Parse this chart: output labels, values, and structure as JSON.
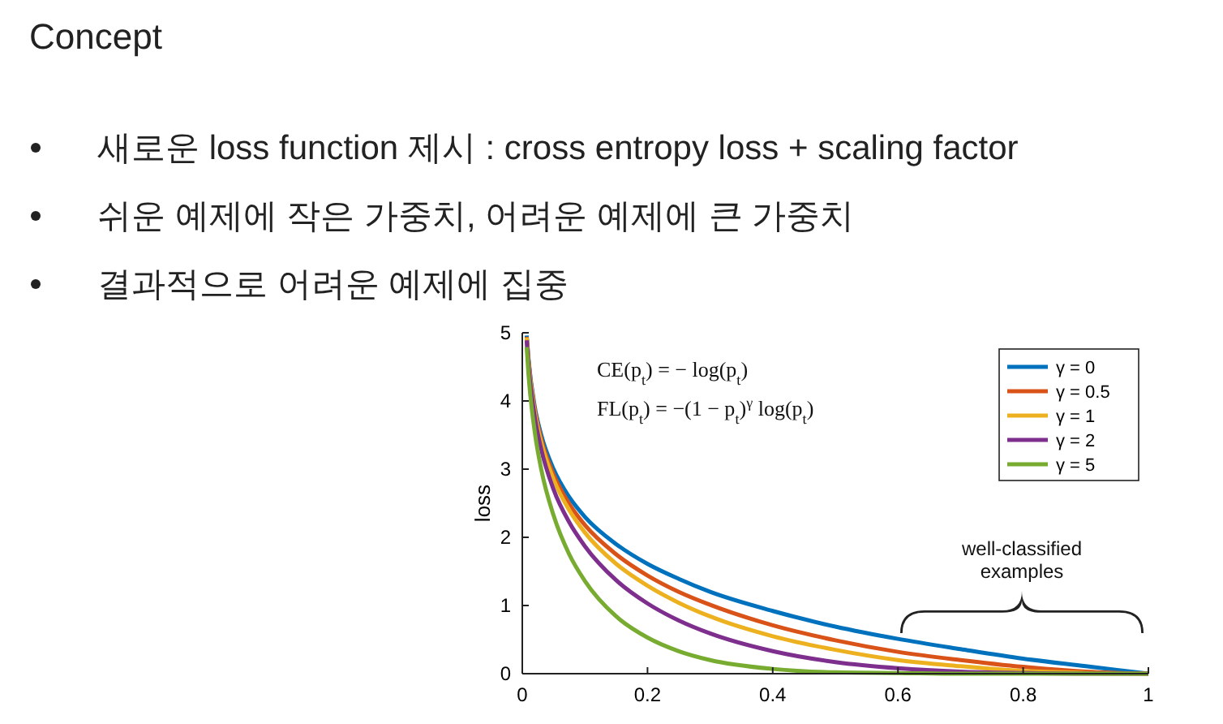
{
  "chart_data": {
    "type": "line",
    "title": "Concept",
    "ylabel": "loss",
    "annotations": [
      "새로운 loss function 제시 : cross entropy loss + scaling factor",
      "쉬운 예제에 작은 가중치, 어려운 예제에 큰 가중치",
      "결과적으로 어려운 예제에 집중",
      "CE(p$_{t}$) = − log(p$_{t}$)",
      "FL(p$_{t}$) = −(1 − p$_{t}$)$^{γ}$ log(p$_{t}$)",
      "well-classified examples"
    ],
    "x": [
      0.007,
      0.01,
      0.02,
      0.03,
      0.05,
      0.075,
      0.1,
      0.15,
      0.2,
      0.25,
      0.3,
      0.4,
      0.5,
      0.6,
      0.7,
      0.8,
      0.9,
      1.0
    ],
    "series": [
      {
        "name": "γ = 0",
        "color": "#0072bd",
        "values": [
          4.96,
          4.61,
          3.91,
          3.51,
          3.0,
          2.59,
          2.3,
          1.9,
          1.61,
          1.39,
          1.2,
          0.92,
          0.69,
          0.51,
          0.36,
          0.22,
          0.11,
          0
        ]
      },
      {
        "name": "γ = 0.5",
        "color": "#d95319",
        "values": [
          4.94,
          4.58,
          3.87,
          3.45,
          2.92,
          2.49,
          2.18,
          1.75,
          1.44,
          1.2,
          1.01,
          0.71,
          0.49,
          0.32,
          0.2,
          0.1,
          0.03,
          0
        ]
      },
      {
        "name": "γ = 1",
        "color": "#edb120",
        "values": [
          4.93,
          4.56,
          3.83,
          3.4,
          2.85,
          2.4,
          2.07,
          1.61,
          1.29,
          1.04,
          0.84,
          0.55,
          0.35,
          0.2,
          0.11,
          0.04,
          0.01,
          0
        ]
      },
      {
        "name": "γ = 2",
        "color": "#7e2f8e",
        "values": [
          4.89,
          4.51,
          3.76,
          3.3,
          2.7,
          2.22,
          1.87,
          1.37,
          1.03,
          0.78,
          0.59,
          0.33,
          0.17,
          0.08,
          0.03,
          0.01,
          0,
          0
        ]
      },
      {
        "name": "γ = 5",
        "color": "#77ac30",
        "values": [
          4.79,
          4.38,
          3.54,
          3.01,
          2.32,
          1.75,
          1.36,
          0.84,
          0.53,
          0.33,
          0.2,
          0.07,
          0.02,
          0.01,
          0,
          0,
          0,
          0
        ]
      }
    ],
    "xlim": [
      0,
      1
    ],
    "xticks": [
      0,
      0.2,
      0.4,
      0.6,
      0.8,
      1
    ],
    "ylim": [
      0,
      5
    ],
    "yticks": [
      0,
      1,
      2,
      3,
      4,
      5
    ],
    "legend": "top right",
    "marker": "none",
    "line_style": "solid"
  }
}
